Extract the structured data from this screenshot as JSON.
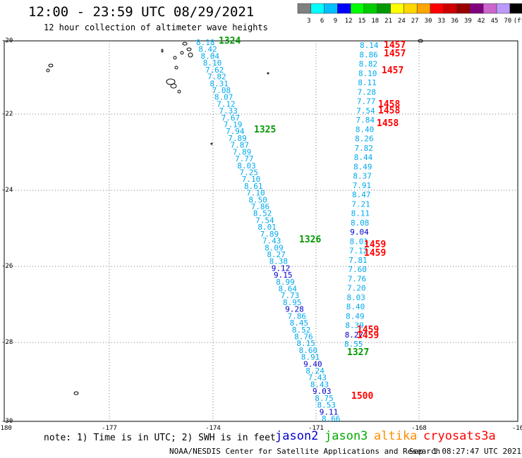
{
  "title": "12:00 - 23:59 UTC 08/29/2021",
  "subtitle": "12 hour collection of altimeter wave heights",
  "scale": {
    "colors": [
      "#808080",
      "#00ffff",
      "#00bfff",
      "#0000ff",
      "#00ff00",
      "#00cc00",
      "#009900",
      "#ffff00",
      "#ffd700",
      "#ffa500",
      "#ff0000",
      "#cc0000",
      "#990000",
      "#800080",
      "#cc66cc",
      "#bb99ff",
      "#000000"
    ],
    "labels": [
      "3",
      "6",
      "9",
      "12",
      "15",
      "18",
      "21",
      "24",
      "27",
      "30",
      "33",
      "36",
      "39",
      "42",
      "45",
      "70",
      "(ft)"
    ]
  },
  "axes": {
    "y_labels": [
      "-20",
      "-22",
      "-24",
      "-26",
      "-28",
      "-30"
    ],
    "x_labels": [
      "-180",
      "-177",
      "-174",
      "-171",
      "-168",
      "-16"
    ]
  },
  "passes": {
    "jason3_1324": "1324",
    "jason3_1325": "1325",
    "jason3_1326": "1326",
    "jason3_1327": "1327",
    "cryosat_1457a": "1457",
    "cryosat_1457b": "1457",
    "cryosat_1457c": "1457",
    "cryosat_1458a": "1458",
    "cryosat_1458b": "1458",
    "cryosat_1458c": "1458",
    "cryosat_1459a": "1459",
    "cryosat_1459b": "1459",
    "cryosat_1459c": "1459",
    "cryosat_1459d": "1459",
    "cryosat_1500": "1500"
  },
  "track_a": [
    "8.18",
    "8.42",
    "8.04",
    "8.10",
    "7.62",
    "7.82",
    "8.31",
    "7.08",
    "8.07",
    "7.12",
    "7.33",
    "7.67",
    "7.19",
    "7.94",
    "7.89",
    "7.87",
    "7.89",
    "7.77",
    "8.03",
    "7.25",
    "7.10",
    "8.61",
    "7.10",
    "8.50",
    "7.86",
    "8.52",
    "7.54",
    "8.01",
    "7.89",
    "7.43",
    "8.09",
    "8.27",
    "8.38",
    "9.12",
    "9.15",
    "8.99",
    "8.64",
    "7.73",
    "8.95",
    "9.28",
    "7.86",
    "8.45",
    "8.52",
    "8.76",
    "8.15",
    "8.60",
    "8.91",
    "9.40",
    "8.24",
    "7.43",
    "8.43",
    "9.03",
    "8.75",
    "8.53",
    "9.11",
    "8.66"
  ],
  "track_a_dark": [
    "9.12",
    "9.15",
    "9.28",
    "9.40",
    "9.03",
    "9.11"
  ],
  "track_b": [
    "8.14",
    "8.86",
    "8.82",
    "8.10",
    "8.11",
    "7.28",
    "7.77",
    "7.54",
    "7.84",
    "8.40",
    "8.26",
    "7.82",
    "8.44",
    "8.49",
    "8.37",
    "7.91",
    "8.47",
    "7.21",
    "8.11",
    "8.08",
    "9.04",
    "8.01",
    "7.12",
    "7.81",
    "7.60",
    "7.76",
    "7.20",
    "8.03",
    "8.40",
    "8.49",
    "8.39",
    "8.27",
    "8.55"
  ],
  "track_b_dark": [
    "9.04",
    "8.27"
  ],
  "colors": {
    "jason3": "#009900",
    "cryosat": "#ff0000",
    "swh": "#00aaee",
    "swh_dark": "#0000cc"
  },
  "legend": {
    "note": "note: 1) Time is in UTC; 2) SWH is in feet",
    "jason2": "jason2",
    "jason3": "jason3",
    "altika": "altika",
    "cryosat": "cryosat",
    "s3a": "s3a"
  },
  "credit": "NOAA/NESDIS Center for Satellite Applications and Research",
  "stamp": "Sep  1 08:27:47 UTC 2021"
}
